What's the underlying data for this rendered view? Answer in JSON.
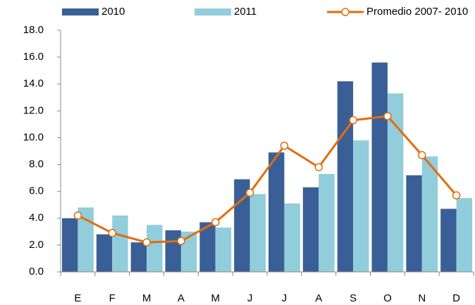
{
  "chart_data": {
    "type": "bar_line",
    "categories": [
      "E",
      "F",
      "M",
      "A",
      "M",
      "J",
      "J",
      "A",
      "S",
      "O",
      "N",
      "D"
    ],
    "series": [
      {
        "name": "2010",
        "type": "bar",
        "color": "#3a5f96",
        "values": [
          4.0,
          2.8,
          2.2,
          3.1,
          3.7,
          6.9,
          8.9,
          6.3,
          14.2,
          15.6,
          7.2,
          4.7
        ]
      },
      {
        "name": "2011",
        "type": "bar",
        "color": "#92cddc",
        "values": [
          4.8,
          4.2,
          3.5,
          3.0,
          3.3,
          5.8,
          5.1,
          7.3,
          9.8,
          13.3,
          8.6,
          5.5
        ]
      },
      {
        "name": "Promedio 2007- 2010",
        "type": "line",
        "color": "#e36c0a",
        "values": [
          4.2,
          2.9,
          2.2,
          2.3,
          3.7,
          5.9,
          9.4,
          7.8,
          11.3,
          11.6,
          8.7,
          5.7
        ]
      }
    ],
    "ylim": [
      0,
      18
    ],
    "yticks": [
      {
        "value": 0,
        "label": "0.0"
      },
      {
        "value": 2,
        "label": "2.0"
      },
      {
        "value": 4,
        "label": "4.0"
      },
      {
        "value": 6,
        "label": "6.0"
      },
      {
        "value": 8,
        "label": "8.0"
      },
      {
        "value": 10,
        "label": "10.0"
      },
      {
        "value": 12,
        "label": "12.0"
      },
      {
        "value": 14,
        "label": "14.0"
      },
      {
        "value": 16,
        "label": "16.0"
      },
      {
        "value": 18,
        "label": "18.0"
      }
    ],
    "grid": false,
    "legend": "top"
  }
}
